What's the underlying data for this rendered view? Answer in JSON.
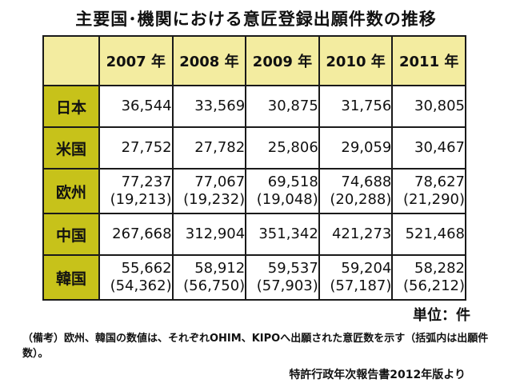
{
  "title": "主要国･機関における意匠登録出願件数の推移",
  "table": {
    "years": [
      "2007 年",
      "2008 年",
      "2009 年",
      "2010 年",
      "2011 年"
    ],
    "rows": [
      {
        "label": "日本",
        "values": [
          "36,544",
          "33,569",
          "30,875",
          "31,756",
          "30,805"
        ],
        "sub": null
      },
      {
        "label": "米国",
        "values": [
          "27,752",
          "27,782",
          "25,806",
          "29,059",
          "30,467"
        ],
        "sub": null
      },
      {
        "label": "欧州",
        "values": [
          "77,237",
          "77,067",
          "69,518",
          "74,688",
          "78,627"
        ],
        "sub": [
          "(19,213)",
          "(19,232)",
          "(19,048)",
          "(20,288)",
          "(21,290)"
        ]
      },
      {
        "label": "中国",
        "values": [
          "267,668",
          "312,904",
          "351,342",
          "421,273",
          "521,468"
        ],
        "sub": null
      },
      {
        "label": "韓国",
        "values": [
          "55,662",
          "58,912",
          "59,537",
          "59,204",
          "58,282"
        ],
        "sub": [
          "(54,362)",
          "(56,750)",
          "(57,903)",
          "(57,187)",
          "(56,212)"
        ]
      }
    ]
  },
  "unit": "単位：件",
  "note": "（備考）欧州、韓国の数値は、それぞれOHIM、KIPOへ出願された意匠数を示す（括弧内は出願件数）。",
  "source": "特許行政年次報告書2012年版より",
  "colors": {
    "header_bg": "#f3eca0",
    "rowhead_bg": "#c7c21a"
  }
}
